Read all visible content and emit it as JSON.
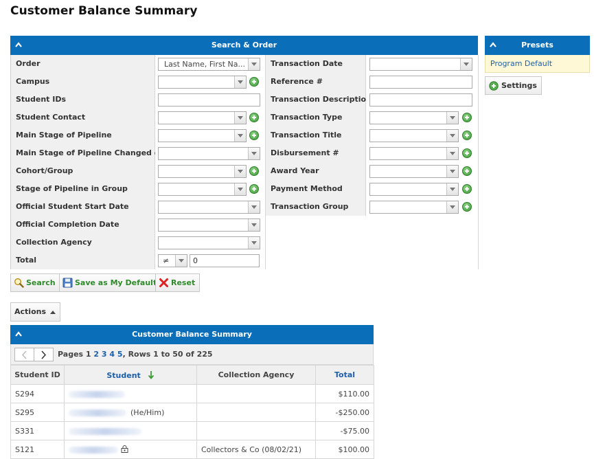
{
  "page": {
    "title": "Customer Balance Summary"
  },
  "search": {
    "header": "Search & Order",
    "labels": {
      "order": "Order",
      "campus": "Campus",
      "student_ids": "Student IDs",
      "student_contact": "Student Contact",
      "main_stage": "Main Stage of Pipeline",
      "main_stage_changed": "Main Stage of Pipeline Changed on",
      "cohort": "Cohort/Group",
      "stage_in_group": "Stage of Pipeline in Group",
      "start_date": "Official Student Start Date",
      "completion_date": "Official Completion Date",
      "collection_agency": "Collection Agency",
      "total": "Total",
      "transaction_date": "Transaction Date",
      "reference": "Reference #",
      "transaction_description": "Transaction Description",
      "transaction_type": "Transaction Type",
      "transaction_title": "Transaction Title",
      "disbursement": "Disbursement #",
      "award_year": "Award Year",
      "payment_method": "Payment Method",
      "transaction_group": "Transaction Group"
    },
    "order_value": "Last Name, First Na...",
    "total_operator": "≠",
    "total_value": "0",
    "buttons": {
      "search": "Search",
      "save_default": "Save as My Default",
      "reset": "Reset"
    }
  },
  "presets": {
    "header": "Presets",
    "item": "Program Default",
    "settings": "Settings"
  },
  "actions_label": "Actions",
  "results": {
    "header": "Customer Balance Summary",
    "pager": {
      "pages_label": "Pages",
      "current_page": "1",
      "pages": [
        "2",
        "3",
        "4",
        "5"
      ],
      "rows_text": ", Rows 1 to 50 of 225"
    },
    "columns": {
      "student_id": "Student ID",
      "student": "Student",
      "agency": "Collection Agency",
      "total": "Total"
    },
    "rows": [
      {
        "id": "S294",
        "student_suffix": "",
        "agency": "",
        "total": "$110.00"
      },
      {
        "id": "S295",
        "student_suffix": "(He/Him)",
        "agency": "",
        "total": "-$250.00"
      },
      {
        "id": "S331",
        "student_suffix": "",
        "agency": "",
        "total": "-$75.00"
      },
      {
        "id": "S121",
        "student_suffix": "",
        "agency": "Collectors & Co (08/02/21)",
        "total": "$100.00"
      }
    ]
  }
}
